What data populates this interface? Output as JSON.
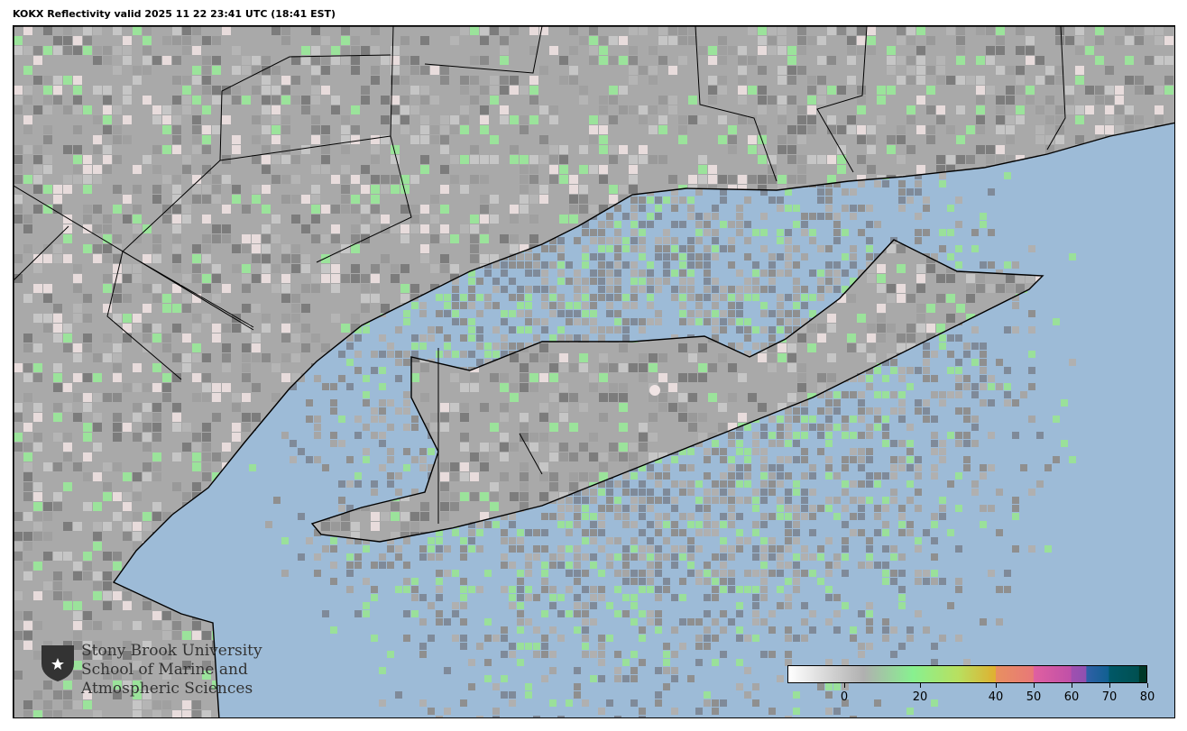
{
  "title": "KOKX Reflectivity valid 2025 11 22 23:41 UTC (18:41 EST)",
  "map": {
    "radar_site": "KOKX",
    "product": "Reflectivity",
    "colors": {
      "ocean": "#9dbbd7",
      "land": "#a9a9a9",
      "borders": "#000000"
    }
  },
  "logo": {
    "icon": "university-shield-star-icon",
    "lines": [
      "Stony Brook University",
      "School of Marine and",
      "Atmospheric Sciences"
    ]
  },
  "colorbar": {
    "range": [
      -15,
      80
    ],
    "ticks": [
      "0",
      "20",
      "40",
      "50",
      "60",
      "70",
      "80"
    ],
    "tick_values": [
      0,
      20,
      40,
      50,
      60,
      70,
      80
    ],
    "stops": [
      {
        "v": -15,
        "c": "#ffffff"
      },
      {
        "v": 5,
        "c": "#b0b0b0"
      },
      {
        "v": 18,
        "c": "#88f090"
      },
      {
        "v": 30,
        "c": "#b8e060"
      },
      {
        "v": 40,
        "c": "#e0b030"
      },
      {
        "v": 40.1,
        "c": "#e89060"
      },
      {
        "v": 50,
        "c": "#e87878"
      },
      {
        "v": 50.1,
        "c": "#e060a0"
      },
      {
        "v": 60,
        "c": "#c050a8"
      },
      {
        "v": 60.1,
        "c": "#a050b0"
      },
      {
        "v": 64,
        "c": "#9050b0"
      },
      {
        "v": 64.1,
        "c": "#3060a8"
      },
      {
        "v": 70,
        "c": "#106090"
      },
      {
        "v": 70.1,
        "c": "#005868"
      },
      {
        "v": 78,
        "c": "#005050"
      },
      {
        "v": 78.1,
        "c": "#003828"
      },
      {
        "v": 80,
        "c": "#003828"
      }
    ]
  }
}
